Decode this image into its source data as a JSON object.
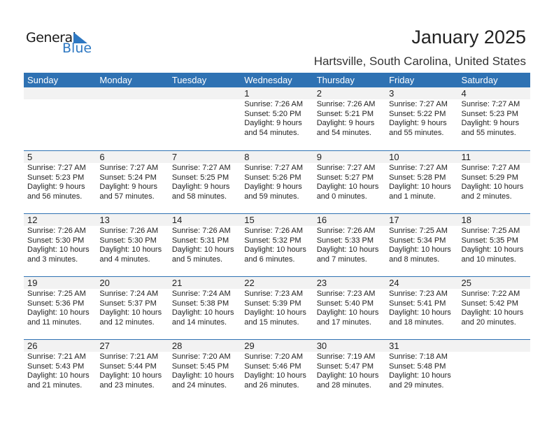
{
  "logo": {
    "text_general": "General",
    "text_blue": "Blue"
  },
  "header": {
    "title": "January 2025",
    "location": "Hartsville, South Carolina, United States"
  },
  "colors": {
    "accent": "#2f72b3",
    "date_band": "#f2f2f2"
  },
  "weekdays": [
    "Sunday",
    "Monday",
    "Tuesday",
    "Wednesday",
    "Thursday",
    "Friday",
    "Saturday"
  ],
  "weeks": [
    [
      null,
      null,
      null,
      {
        "date": "1",
        "sunrise": "Sunrise: 7:26 AM",
        "sunset": "Sunset: 5:20 PM",
        "daylight": "Daylight: 9 hours",
        "daylight2": "and 54 minutes."
      },
      {
        "date": "2",
        "sunrise": "Sunrise: 7:26 AM",
        "sunset": "Sunset: 5:21 PM",
        "daylight": "Daylight: 9 hours",
        "daylight2": "and 54 minutes."
      },
      {
        "date": "3",
        "sunrise": "Sunrise: 7:27 AM",
        "sunset": "Sunset: 5:22 PM",
        "daylight": "Daylight: 9 hours",
        "daylight2": "and 55 minutes."
      },
      {
        "date": "4",
        "sunrise": "Sunrise: 7:27 AM",
        "sunset": "Sunset: 5:23 PM",
        "daylight": "Daylight: 9 hours",
        "daylight2": "and 55 minutes."
      }
    ],
    [
      {
        "date": "5",
        "sunrise": "Sunrise: 7:27 AM",
        "sunset": "Sunset: 5:23 PM",
        "daylight": "Daylight: 9 hours",
        "daylight2": "and 56 minutes."
      },
      {
        "date": "6",
        "sunrise": "Sunrise: 7:27 AM",
        "sunset": "Sunset: 5:24 PM",
        "daylight": "Daylight: 9 hours",
        "daylight2": "and 57 minutes."
      },
      {
        "date": "7",
        "sunrise": "Sunrise: 7:27 AM",
        "sunset": "Sunset: 5:25 PM",
        "daylight": "Daylight: 9 hours",
        "daylight2": "and 58 minutes."
      },
      {
        "date": "8",
        "sunrise": "Sunrise: 7:27 AM",
        "sunset": "Sunset: 5:26 PM",
        "daylight": "Daylight: 9 hours",
        "daylight2": "and 59 minutes."
      },
      {
        "date": "9",
        "sunrise": "Sunrise: 7:27 AM",
        "sunset": "Sunset: 5:27 PM",
        "daylight": "Daylight: 10 hours",
        "daylight2": "and 0 minutes."
      },
      {
        "date": "10",
        "sunrise": "Sunrise: 7:27 AM",
        "sunset": "Sunset: 5:28 PM",
        "daylight": "Daylight: 10 hours",
        "daylight2": "and 1 minute."
      },
      {
        "date": "11",
        "sunrise": "Sunrise: 7:27 AM",
        "sunset": "Sunset: 5:29 PM",
        "daylight": "Daylight: 10 hours",
        "daylight2": "and 2 minutes."
      }
    ],
    [
      {
        "date": "12",
        "sunrise": "Sunrise: 7:26 AM",
        "sunset": "Sunset: 5:30 PM",
        "daylight": "Daylight: 10 hours",
        "daylight2": "and 3 minutes."
      },
      {
        "date": "13",
        "sunrise": "Sunrise: 7:26 AM",
        "sunset": "Sunset: 5:30 PM",
        "daylight": "Daylight: 10 hours",
        "daylight2": "and 4 minutes."
      },
      {
        "date": "14",
        "sunrise": "Sunrise: 7:26 AM",
        "sunset": "Sunset: 5:31 PM",
        "daylight": "Daylight: 10 hours",
        "daylight2": "and 5 minutes."
      },
      {
        "date": "15",
        "sunrise": "Sunrise: 7:26 AM",
        "sunset": "Sunset: 5:32 PM",
        "daylight": "Daylight: 10 hours",
        "daylight2": "and 6 minutes."
      },
      {
        "date": "16",
        "sunrise": "Sunrise: 7:26 AM",
        "sunset": "Sunset: 5:33 PM",
        "daylight": "Daylight: 10 hours",
        "daylight2": "and 7 minutes."
      },
      {
        "date": "17",
        "sunrise": "Sunrise: 7:25 AM",
        "sunset": "Sunset: 5:34 PM",
        "daylight": "Daylight: 10 hours",
        "daylight2": "and 8 minutes."
      },
      {
        "date": "18",
        "sunrise": "Sunrise: 7:25 AM",
        "sunset": "Sunset: 5:35 PM",
        "daylight": "Daylight: 10 hours",
        "daylight2": "and 10 minutes."
      }
    ],
    [
      {
        "date": "19",
        "sunrise": "Sunrise: 7:25 AM",
        "sunset": "Sunset: 5:36 PM",
        "daylight": "Daylight: 10 hours",
        "daylight2": "and 11 minutes."
      },
      {
        "date": "20",
        "sunrise": "Sunrise: 7:24 AM",
        "sunset": "Sunset: 5:37 PM",
        "daylight": "Daylight: 10 hours",
        "daylight2": "and 12 minutes."
      },
      {
        "date": "21",
        "sunrise": "Sunrise: 7:24 AM",
        "sunset": "Sunset: 5:38 PM",
        "daylight": "Daylight: 10 hours",
        "daylight2": "and 14 minutes."
      },
      {
        "date": "22",
        "sunrise": "Sunrise: 7:23 AM",
        "sunset": "Sunset: 5:39 PM",
        "daylight": "Daylight: 10 hours",
        "daylight2": "and 15 minutes."
      },
      {
        "date": "23",
        "sunrise": "Sunrise: 7:23 AM",
        "sunset": "Sunset: 5:40 PM",
        "daylight": "Daylight: 10 hours",
        "daylight2": "and 17 minutes."
      },
      {
        "date": "24",
        "sunrise": "Sunrise: 7:23 AM",
        "sunset": "Sunset: 5:41 PM",
        "daylight": "Daylight: 10 hours",
        "daylight2": "and 18 minutes."
      },
      {
        "date": "25",
        "sunrise": "Sunrise: 7:22 AM",
        "sunset": "Sunset: 5:42 PM",
        "daylight": "Daylight: 10 hours",
        "daylight2": "and 20 minutes."
      }
    ],
    [
      {
        "date": "26",
        "sunrise": "Sunrise: 7:21 AM",
        "sunset": "Sunset: 5:43 PM",
        "daylight": "Daylight: 10 hours",
        "daylight2": "and 21 minutes."
      },
      {
        "date": "27",
        "sunrise": "Sunrise: 7:21 AM",
        "sunset": "Sunset: 5:44 PM",
        "daylight": "Daylight: 10 hours",
        "daylight2": "and 23 minutes."
      },
      {
        "date": "28",
        "sunrise": "Sunrise: 7:20 AM",
        "sunset": "Sunset: 5:45 PM",
        "daylight": "Daylight: 10 hours",
        "daylight2": "and 24 minutes."
      },
      {
        "date": "29",
        "sunrise": "Sunrise: 7:20 AM",
        "sunset": "Sunset: 5:46 PM",
        "daylight": "Daylight: 10 hours",
        "daylight2": "and 26 minutes."
      },
      {
        "date": "30",
        "sunrise": "Sunrise: 7:19 AM",
        "sunset": "Sunset: 5:47 PM",
        "daylight": "Daylight: 10 hours",
        "daylight2": "and 28 minutes."
      },
      {
        "date": "31",
        "sunrise": "Sunrise: 7:18 AM",
        "sunset": "Sunset: 5:48 PM",
        "daylight": "Daylight: 10 hours",
        "daylight2": "and 29 minutes."
      },
      null
    ]
  ]
}
